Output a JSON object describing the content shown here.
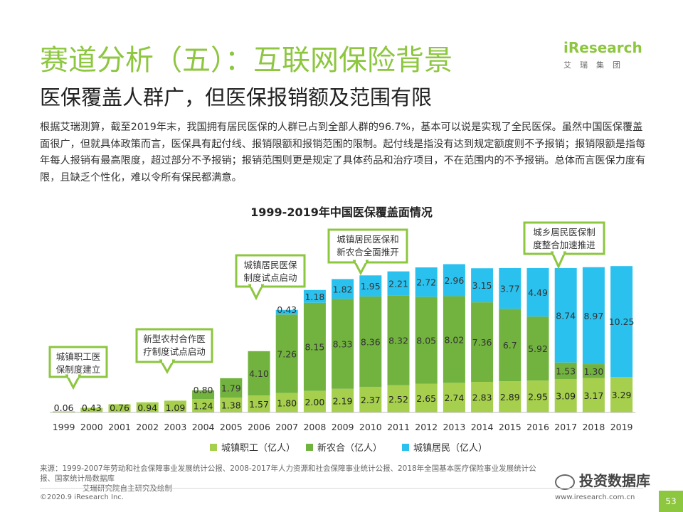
{
  "header": {
    "title": "赛道分析（五）：互联网保险背景",
    "subtitle": "医保覆盖人群广，但医保报销额及范围有限"
  },
  "logo": {
    "word": "iResearch",
    "cn": "艾瑞集团"
  },
  "body_text": "根据艾瑞测算，截至2019年末，我国拥有居民医保的人群已占到全部人群的96.7%，基本可以说是实现了全民医保。虽然中国医保覆盖面很广，但就具体政策而言，医保具有起付线、报销限额和报销范围的限制。起付线是指没有达到规定额度则不予报销；报销限额是指每年每人报销有最高限度，超过部分不予报销；报销范围则更是规定了具体药品和治疗项目，不在范围内的不予报销。总体而言医保力度有限，且缺乏个性化，难以令所有保民都满意。",
  "chart_data": {
    "type": "bar",
    "stacked": true,
    "title": "1999-2019年中国医保覆盖面情况",
    "categories": [
      "1999",
      "2000",
      "2001",
      "2002",
      "2003",
      "2004",
      "2005",
      "2006",
      "2007",
      "2008",
      "2009",
      "2010",
      "2011",
      "2012",
      "2013",
      "2014",
      "2015",
      "2016",
      "2017",
      "2018",
      "2019"
    ],
    "series": [
      {
        "name": "城镇职工（亿人）",
        "color": "#a5cf4c",
        "values": [
          0.06,
          0.43,
          0.76,
          0.94,
          1.09,
          1.24,
          1.38,
          1.57,
          1.8,
          2.0,
          2.19,
          2.37,
          2.52,
          2.65,
          2.74,
          2.83,
          2.89,
          2.95,
          3.09,
          3.17,
          3.29
        ]
      },
      {
        "name": "新农合（亿人）",
        "color": "#72b33f",
        "values": [
          null,
          null,
          null,
          null,
          null,
          0.8,
          1.79,
          4.1,
          7.26,
          8.15,
          8.33,
          8.36,
          8.32,
          8.05,
          8.02,
          7.36,
          6.7,
          5.92,
          1.53,
          1.3,
          null
        ]
      },
      {
        "name": "城镇居民（亿人）",
        "color": "#2bc1ee",
        "values": [
          null,
          null,
          null,
          null,
          null,
          null,
          null,
          null,
          0.43,
          1.18,
          1.82,
          1.95,
          2.21,
          2.72,
          2.96,
          3.15,
          3.77,
          4.49,
          8.74,
          8.97,
          10.25
        ]
      }
    ],
    "value_labels": {
      "s0": [
        "0.06",
        "0.43",
        "0.76",
        "0.94",
        "1.09",
        "1.24",
        "1.38",
        "1.57",
        "1.80",
        "2.00",
        "2.19",
        "2.37",
        "2.52",
        "2.65",
        "2.74",
        "2.83",
        "2.89",
        "2.95",
        "3.09",
        "3.17",
        "3.29"
      ],
      "s1": [
        "",
        "",
        "",
        "",
        "",
        "0.80",
        "1.79",
        "4.10",
        "7.26",
        "8.15",
        "8.33",
        "8.36",
        "8.32",
        "8.05",
        "8.02",
        "7.36",
        "6.7",
        "5.92",
        "1.53",
        "1.30",
        ""
      ],
      "s2": [
        "",
        "",
        "",
        "",
        "",
        "",
        "",
        "",
        "0.43",
        "1.18",
        "1.82",
        "1.95",
        "2.21",
        "2.72",
        "2.96",
        "3.15",
        "3.77",
        "4.49",
        "8.74",
        "8.97",
        "10.25"
      ]
    },
    "annotations": [
      {
        "text": [
          "城镇职工医",
          "保制度建立"
        ],
        "year": "1999"
      },
      {
        "text": [
          "新型农村合作医",
          "疗制度试点启动"
        ],
        "year": "2003"
      },
      {
        "text": [
          "城镇居民医保",
          "制度试点启动"
        ],
        "year": "2007"
      },
      {
        "text": [
          "城镇居民医保和",
          "新农合全面推开"
        ],
        "year": "2009"
      },
      {
        "text": [
          "城乡居民医保制",
          "度整合加速推进"
        ],
        "year": "2016"
      }
    ],
    "legend_position": "bottom",
    "grid": false
  },
  "source": {
    "line1": "来源：1999-2007年劳动和社会保障事业发展统计公报、2008-2017年人力资源和社会保障事业统计公报、2018年全国基本医疗保险事业发展统计公报、国家统计局数据库",
    "line2": "艾瑞研究院自主研究及绘制"
  },
  "footer": {
    "copyright": "©2020.9 iResearch Inc.",
    "site": "www.iresearch.com.cn",
    "page": "53",
    "watermark": "投资数据库"
  }
}
